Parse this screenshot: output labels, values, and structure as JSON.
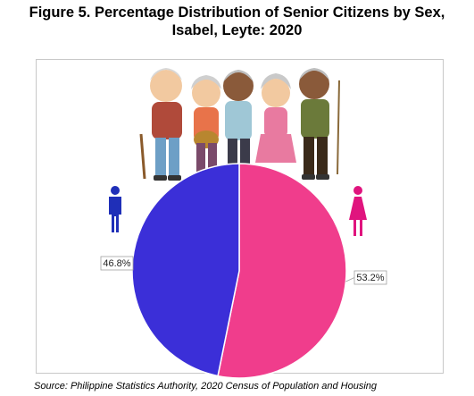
{
  "title_line1": "Figure 5. Percentage Distribution of Senior Citizens by Sex,",
  "title_line2": "Isabel, Leyte: 2020",
  "source": "Source: Philippine Statistics Authority, 2020 Census of Population and Housing",
  "illustration": "senior-citizens-illustration",
  "colors": {
    "male": "#3b2fd8",
    "female": "#f03d8c",
    "male_icon": "#1f2fb8",
    "female_icon": "#e0147e"
  },
  "chart_data": {
    "type": "pie",
    "title": "Figure 5. Percentage Distribution of Senior Citizens by Sex, Isabel, Leyte: 2020",
    "slices": [
      {
        "value": 53.2,
        "label": "53.2%",
        "color": "#f03d8c",
        "icon": "female-icon"
      },
      {
        "value": 46.8,
        "label": "46.8%",
        "color": "#3b2fd8",
        "icon": "male-icon"
      }
    ]
  }
}
